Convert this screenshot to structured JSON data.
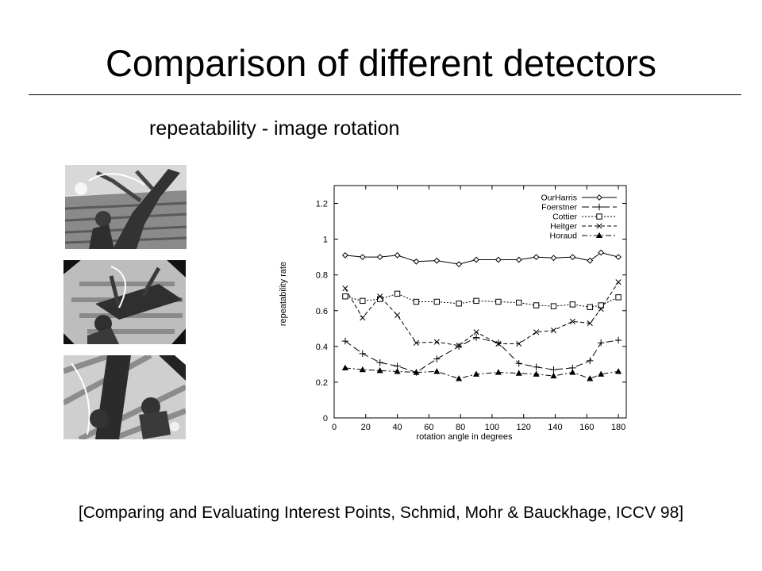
{
  "slide": {
    "title": "Comparison of different detectors",
    "subtitle": "repeatability - image rotation",
    "citation": "[Comparing and Evaluating Interest Points, Schmid, Mohr & Bauckhage, ICCV 98]"
  },
  "images": [
    {
      "name": "painting-original",
      "rotation": 0
    },
    {
      "name": "painting-rotated-45",
      "rotation": 45
    },
    {
      "name": "painting-rotated-135",
      "rotation": 135
    }
  ],
  "chart_data": {
    "type": "line",
    "xlabel": "rotation angle in degrees",
    "ylabel": "repeatability rate",
    "xlim": [
      0,
      185
    ],
    "ylim": [
      0,
      1.3
    ],
    "xticks": [
      "0",
      "20",
      "40",
      "60",
      "80",
      "100",
      "120",
      "140",
      "160",
      "180"
    ],
    "yticks": [
      "0",
      "0.2",
      "0.4",
      "0.6",
      "0.8",
      "1",
      "1.2"
    ],
    "legend_position": "top-right",
    "x": [
      7,
      18,
      29,
      40,
      52,
      65,
      79,
      90,
      104,
      117,
      128,
      139,
      151,
      162,
      169,
      180
    ],
    "series": [
      {
        "name": "OurHarris",
        "marker": "diamond",
        "dash": "solid",
        "values": [
          0.91,
          0.9,
          0.9,
          0.91,
          0.875,
          0.88,
          0.86,
          0.885,
          0.885,
          0.885,
          0.9,
          0.895,
          0.9,
          0.88,
          0.925,
          0.9
        ]
      },
      {
        "name": "Foerstner",
        "marker": "plus",
        "dash": "longdash",
        "values": [
          0.43,
          0.36,
          0.31,
          0.29,
          0.255,
          0.33,
          0.4,
          0.45,
          0.42,
          0.305,
          0.285,
          0.27,
          0.28,
          0.32,
          0.42,
          0.435
        ]
      },
      {
        "name": "Cottier",
        "marker": "square",
        "dash": "dotted",
        "values": [
          0.68,
          0.655,
          0.665,
          0.695,
          0.65,
          0.65,
          0.64,
          0.655,
          0.65,
          0.645,
          0.63,
          0.625,
          0.635,
          0.62,
          0.63,
          0.675
        ]
      },
      {
        "name": "Heitger",
        "marker": "cross",
        "dash": "dashed",
        "values": [
          0.725,
          0.56,
          0.68,
          0.575,
          0.42,
          0.425,
          0.405,
          0.48,
          0.415,
          0.415,
          0.48,
          0.49,
          0.54,
          0.53,
          0.61,
          0.76
        ]
      },
      {
        "name": "Horaud",
        "marker": "triangle",
        "dash": "dashdot",
        "values": [
          0.28,
          0.27,
          0.265,
          0.26,
          0.255,
          0.26,
          0.22,
          0.245,
          0.255,
          0.25,
          0.245,
          0.235,
          0.255,
          0.22,
          0.245,
          0.26
        ]
      }
    ]
  }
}
